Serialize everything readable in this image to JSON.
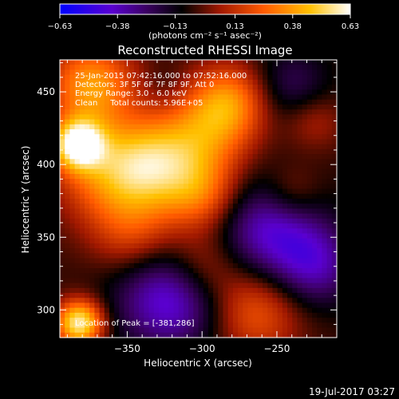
{
  "chart_data": {
    "type": "heatmap",
    "title": "Reconstructed RHESSI Image",
    "xlabel": "Heliocentric X (arcsec)",
    "ylabel": "Heliocentric Y (arcsec)",
    "xlim": [
      -395,
      -210
    ],
    "ylim": [
      281,
      472
    ],
    "xticks": [
      -350,
      -300,
      -250
    ],
    "yticks": [
      300,
      350,
      400,
      450
    ],
    "xtick_labels": [
      "−350",
      "−300",
      "−250"
    ],
    "ytick_labels": [
      "300",
      "350",
      "400",
      "450"
    ],
    "colorbar": {
      "range": [
        -0.63,
        0.63
      ],
      "ticks": [
        -0.63,
        -0.38,
        -0.13,
        0.13,
        0.38,
        0.63
      ],
      "tick_labels": [
        "−0.63",
        "−0.38",
        "−0.13",
        "0.13",
        "0.38",
        "0.63"
      ],
      "units_label": "(photons cm⁻² s⁻¹ asec⁻²)",
      "colors": [
        "#0000ff",
        "#6a00c8",
        "#000000",
        "#8a1400",
        "#ff5a00",
        "#ffd000",
        "#ffffff"
      ]
    },
    "annotations": [
      "25-Jan-2015 07:42:16.000 to 07:52:16.000",
      "Detectors: 3F 5F 6F 7F 8F 9F, Att 0",
      "Energy Range: 3.0 - 6.0 keV",
      "Clean     Total counts: 5.96E+05"
    ],
    "peak_label": "Location of Peak = [-381,286]",
    "peak": [
      -381,
      286
    ],
    "intensity_sources": [
      {
        "x": -383,
        "y": 414,
        "amp": 0.63,
        "sigma": 12
      },
      {
        "x": -382,
        "y": 291,
        "amp": 0.64,
        "sigma": 11
      },
      {
        "x": -374,
        "y": 455,
        "amp": 0.42,
        "sigma": 20
      },
      {
        "x": -360,
        "y": 395,
        "amp": 0.38,
        "sigma": 25
      },
      {
        "x": -330,
        "y": 400,
        "amp": 0.36,
        "sigma": 22
      },
      {
        "x": -298,
        "y": 420,
        "amp": 0.3,
        "sigma": 22
      },
      {
        "x": -282,
        "y": 444,
        "amp": 0.34,
        "sigma": 18
      },
      {
        "x": -300,
        "y": 378,
        "amp": 0.28,
        "sigma": 18
      },
      {
        "x": -345,
        "y": 350,
        "amp": 0.22,
        "sigma": 20
      },
      {
        "x": -300,
        "y": 330,
        "amp": 0.25,
        "sigma": 18
      },
      {
        "x": -265,
        "y": 300,
        "amp": 0.3,
        "sigma": 22
      },
      {
        "x": -240,
        "y": 380,
        "amp": 0.16,
        "sigma": 14
      },
      {
        "x": -225,
        "y": 430,
        "amp": 0.14,
        "sigma": 14
      }
    ],
    "negative_sources": [
      {
        "x": -320,
        "y": 310,
        "amp": -0.42,
        "sigma": 26
      },
      {
        "x": -255,
        "y": 355,
        "amp": -0.35,
        "sigma": 25
      },
      {
        "x": -225,
        "y": 330,
        "amp": -0.28,
        "sigma": 20
      },
      {
        "x": -240,
        "y": 455,
        "amp": -0.18,
        "sigma": 18
      },
      {
        "x": -325,
        "y": 455,
        "amp": -0.05,
        "sigma": 10
      }
    ]
  },
  "footer_date": "19-Jul-2017 03:27"
}
